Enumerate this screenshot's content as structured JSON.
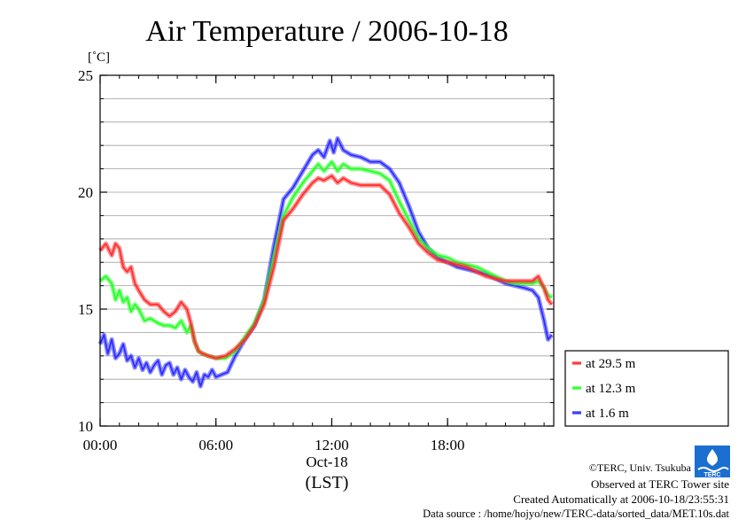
{
  "title": "Air Temperature / 2006-10-18",
  "unit_label": "[˚C]",
  "date_label": "Oct-18",
  "time_zone_label": "(LST)",
  "credits": {
    "copyright": "©TERC, Univ. Tsukuba",
    "site": "Observed at TERC Tower site",
    "created": "Created Automatically at 2006-10-18/23:55:31",
    "source": "Data source : /home/hojyo/new/TERC-data/sorted_data/MET.10s.dat"
  },
  "logo_text": "TERC",
  "colors": {
    "series_29_5": "#ff2a2a",
    "series_12_3": "#22ff22",
    "series_1_6": "#2a2aff",
    "grid": "#a0a0a0"
  },
  "chart_data": {
    "type": "line",
    "title": "Air Temperature / 2006-10-18",
    "xlabel": "(LST)",
    "ylabel": "[˚C]",
    "xlim": [
      0,
      23.5
    ],
    "ylim": [
      10,
      25
    ],
    "x_ticks": [
      {
        "value": 0,
        "label": "00:00"
      },
      {
        "value": 6,
        "label": "06:00"
      },
      {
        "value": 12,
        "label": "12:00"
      },
      {
        "value": 18,
        "label": "18:00"
      }
    ],
    "y_ticks": [
      {
        "value": 10,
        "label": "10"
      },
      {
        "value": 15,
        "label": "15"
      },
      {
        "value": 20,
        "label": "20"
      },
      {
        "value": 25,
        "label": "25"
      }
    ],
    "grid": "horizontal",
    "legend_position": "right",
    "series": [
      {
        "name": "at 29.5 m",
        "color": "#ff2a2a",
        "x": [
          0,
          0.3,
          0.6,
          0.8,
          1.0,
          1.2,
          1.4,
          1.6,
          1.8,
          2.0,
          2.3,
          2.6,
          3.0,
          3.3,
          3.6,
          3.9,
          4.2,
          4.5,
          4.7,
          4.9,
          5.1,
          5.3,
          5.6,
          6.0,
          6.5,
          7.0,
          7.5,
          8.0,
          8.5,
          9.0,
          9.5,
          10.0,
          10.5,
          11.0,
          11.3,
          11.6,
          12.0,
          12.3,
          12.6,
          13.0,
          13.5,
          14.0,
          14.5,
          15.0,
          15.5,
          16.0,
          16.5,
          17.0,
          17.5,
          18.0,
          18.5,
          19.0,
          19.5,
          20.0,
          20.5,
          21.0,
          21.5,
          22.0,
          22.4,
          22.7,
          23.0,
          23.2,
          23.4
        ],
        "y": [
          17.5,
          17.8,
          17.3,
          17.8,
          17.6,
          16.8,
          16.6,
          16.8,
          16.1,
          15.8,
          15.4,
          15.2,
          15.2,
          14.9,
          14.7,
          14.9,
          15.3,
          15.0,
          14.4,
          13.6,
          13.2,
          13.1,
          13.0,
          12.9,
          13.0,
          13.3,
          13.7,
          14.3,
          15.2,
          16.8,
          18.8,
          19.3,
          19.9,
          20.4,
          20.6,
          20.5,
          20.7,
          20.4,
          20.6,
          20.4,
          20.3,
          20.3,
          20.3,
          19.9,
          19.1,
          18.5,
          17.8,
          17.4,
          17.1,
          17.0,
          16.9,
          16.8,
          16.6,
          16.4,
          16.3,
          16.2,
          16.2,
          16.2,
          16.2,
          16.4,
          15.9,
          15.4,
          15.2
        ]
      },
      {
        "name": "at 12.3 m",
        "color": "#22ff22",
        "x": [
          0,
          0.3,
          0.6,
          0.8,
          1.0,
          1.2,
          1.4,
          1.6,
          1.8,
          2.0,
          2.3,
          2.6,
          3.0,
          3.3,
          3.6,
          3.9,
          4.2,
          4.5,
          4.7,
          4.9,
          5.1,
          5.3,
          5.6,
          6.0,
          6.5,
          7.0,
          7.5,
          8.0,
          8.5,
          9.0,
          9.5,
          10.0,
          10.5,
          11.0,
          11.3,
          11.6,
          12.0,
          12.3,
          12.6,
          13.0,
          13.5,
          14.0,
          14.5,
          15.0,
          15.5,
          16.0,
          16.5,
          17.0,
          17.5,
          18.0,
          18.5,
          19.0,
          19.5,
          20.0,
          20.5,
          21.0,
          21.5,
          22.0,
          22.4,
          22.7,
          23.0,
          23.2,
          23.4
        ],
        "y": [
          16.2,
          16.4,
          16.1,
          15.4,
          15.8,
          15.3,
          15.5,
          14.9,
          15.2,
          15.0,
          14.5,
          14.6,
          14.4,
          14.3,
          14.3,
          14.2,
          14.5,
          14.0,
          14.3,
          13.6,
          13.2,
          13.1,
          13.0,
          12.9,
          12.9,
          13.2,
          13.8,
          14.4,
          15.4,
          17.2,
          19.0,
          19.8,
          20.4,
          20.9,
          21.2,
          20.9,
          21.3,
          20.9,
          21.2,
          21.0,
          21.0,
          20.9,
          20.8,
          20.5,
          19.6,
          18.8,
          18.0,
          17.6,
          17.3,
          17.2,
          17.0,
          16.9,
          16.8,
          16.6,
          16.4,
          16.2,
          16.1,
          16.1,
          16.1,
          16.2,
          15.9,
          15.6,
          15.5
        ]
      },
      {
        "name": "at 1.6 m",
        "color": "#2a2aff",
        "x": [
          0,
          0.2,
          0.4,
          0.6,
          0.8,
          1.0,
          1.2,
          1.4,
          1.6,
          1.8,
          2.0,
          2.2,
          2.4,
          2.6,
          2.8,
          3.0,
          3.2,
          3.4,
          3.6,
          3.8,
          4.0,
          4.2,
          4.4,
          4.6,
          4.8,
          5.0,
          5.2,
          5.4,
          5.6,
          5.8,
          6.0,
          6.3,
          6.6,
          7.0,
          7.5,
          8.0,
          8.5,
          9.0,
          9.5,
          10.0,
          10.5,
          11.0,
          11.3,
          11.6,
          11.9,
          12.1,
          12.3,
          12.6,
          13.0,
          13.5,
          14.0,
          14.5,
          15.0,
          15.5,
          16.0,
          16.5,
          17.0,
          17.5,
          18.0,
          18.5,
          19.0,
          19.5,
          20.0,
          20.5,
          21.0,
          21.5,
          22.0,
          22.4,
          22.7,
          23.0,
          23.2,
          23.4
        ],
        "y": [
          13.5,
          13.9,
          13.1,
          13.7,
          12.9,
          13.1,
          13.5,
          12.8,
          13.0,
          12.5,
          12.9,
          12.4,
          12.7,
          12.3,
          12.6,
          12.8,
          12.2,
          12.6,
          12.7,
          12.2,
          12.5,
          12.0,
          12.4,
          12.1,
          11.9,
          12.3,
          11.7,
          12.2,
          12.1,
          12.4,
          12.1,
          12.2,
          12.3,
          13.0,
          13.7,
          14.3,
          15.4,
          17.7,
          19.7,
          20.2,
          20.9,
          21.6,
          21.8,
          21.5,
          22.2,
          21.7,
          22.3,
          21.8,
          21.6,
          21.5,
          21.3,
          21.3,
          21.0,
          20.4,
          19.4,
          18.3,
          17.6,
          17.2,
          17.0,
          16.8,
          16.7,
          16.6,
          16.5,
          16.3,
          16.1,
          16.0,
          15.9,
          15.8,
          15.5,
          14.5,
          13.7,
          13.9
        ]
      }
    ]
  }
}
